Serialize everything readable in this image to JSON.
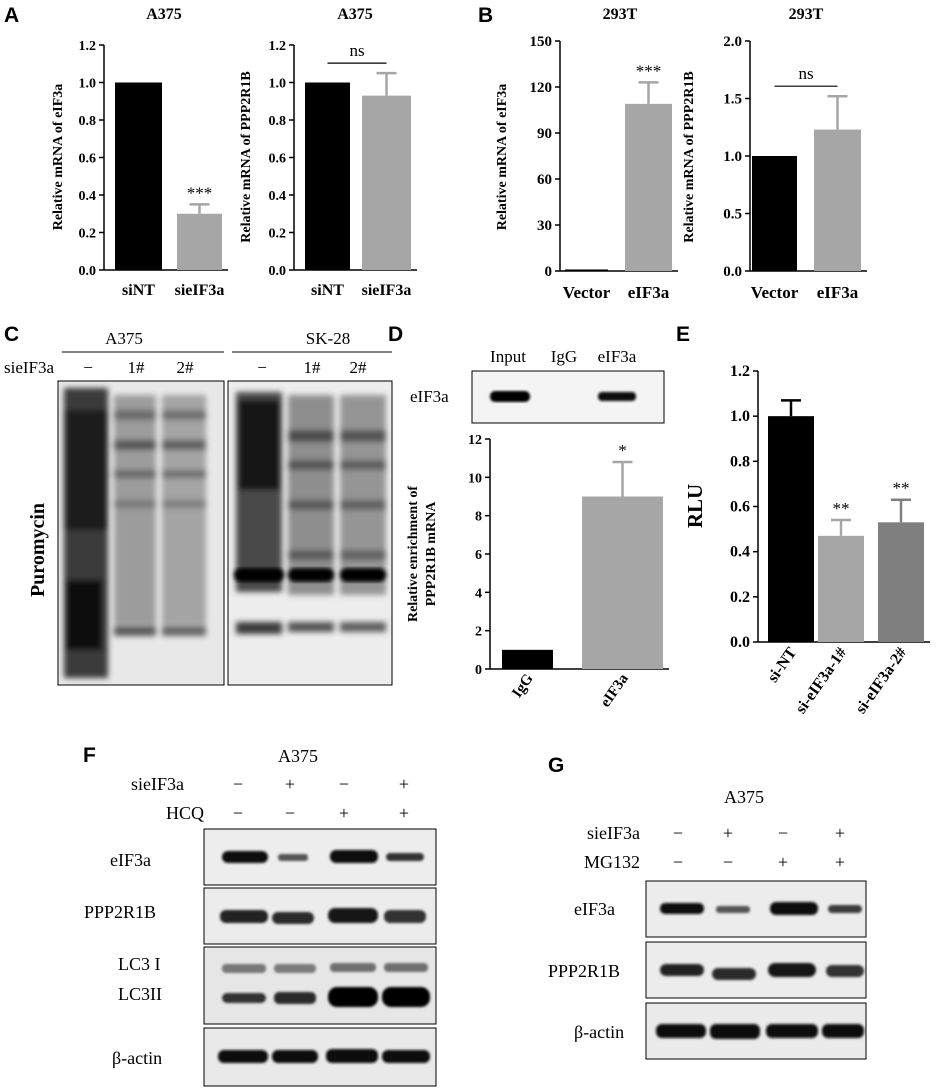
{
  "panels": {
    "A": "A",
    "B": "B",
    "C": "C",
    "D": "D",
    "E": "E",
    "F": "F",
    "G": "G"
  },
  "chart_data": [
    {
      "id": "A1",
      "type": "bar",
      "title": "A375",
      "ylabel": "Relative mRNA of eIF3a",
      "categories": [
        "siNT",
        "sieIF3a"
      ],
      "values": [
        1.0,
        0.3
      ],
      "errors": [
        0,
        0.05
      ],
      "colors": [
        "#000000",
        "#a6a6a6"
      ],
      "ylim": [
        0,
        1.2
      ],
      "yticks": [
        "0.0",
        "0.2",
        "0.4",
        "0.6",
        "0.8",
        "1.0",
        "1.2"
      ],
      "significance": [
        {
          "label": "***",
          "bar": 1
        }
      ]
    },
    {
      "id": "A2",
      "type": "bar",
      "title": "A375",
      "ylabel": "Relative mRNA of PPP2R1B",
      "categories": [
        "siNT",
        "sieIF3a"
      ],
      "values": [
        1.0,
        0.93
      ],
      "errors": [
        0,
        0.12
      ],
      "colors": [
        "#000000",
        "#a6a6a6"
      ],
      "ylim": [
        0,
        1.2
      ],
      "yticks": [
        "0.0",
        "0.2",
        "0.4",
        "0.6",
        "0.8",
        "1.0",
        "1.2"
      ],
      "significance": [
        {
          "label": "ns",
          "bracket": true
        }
      ]
    },
    {
      "id": "B1",
      "type": "bar",
      "title": "293T",
      "ylabel": "Relative mRNA of eIF3a",
      "categories": [
        "Vector",
        "eIF3a"
      ],
      "values": [
        1.0,
        109
      ],
      "errors": [
        0,
        14
      ],
      "colors": [
        "#000000",
        "#a6a6a6"
      ],
      "ylim": [
        0,
        150
      ],
      "yticks": [
        "0",
        "30",
        "60",
        "90",
        "120",
        "150"
      ],
      "significance": [
        {
          "label": "***",
          "bar": 1
        }
      ]
    },
    {
      "id": "B2",
      "type": "bar",
      "title": "293T",
      "ylabel": "Relative mRNA of PPP2R1B",
      "categories": [
        "Vector",
        "eIF3a"
      ],
      "values": [
        1.0,
        1.23
      ],
      "errors": [
        0,
        0.29
      ],
      "colors": [
        "#000000",
        "#a6a6a6"
      ],
      "ylim": [
        0,
        2.0
      ],
      "yticks": [
        "0.0",
        "0.5",
        "1.0",
        "1.5",
        "2.0"
      ],
      "significance": [
        {
          "label": "ns",
          "bracket": true
        }
      ]
    },
    {
      "id": "D",
      "type": "bar",
      "title": "",
      "ylabel": "Relative enrichment of PPP2R1B mRNA",
      "ylabel_lines": [
        "Relative enrichment of",
        "PPP2R1B mRNA"
      ],
      "categories": [
        "IgG",
        "eIF3a"
      ],
      "values": [
        1.0,
        9.0
      ],
      "errors": [
        0,
        1.8
      ],
      "colors": [
        "#000000",
        "#a6a6a6"
      ],
      "ylim": [
        0,
        12
      ],
      "yticks": [
        "0",
        "2",
        "4",
        "6",
        "8",
        "10",
        "12"
      ],
      "significance": [
        {
          "label": "*",
          "bar": 1
        }
      ]
    },
    {
      "id": "E",
      "type": "bar",
      "title": "",
      "ylabel": "RLU",
      "categories": [
        "si-NT",
        "si-eIF3a-1#",
        "si-eIF3a-2#"
      ],
      "values": [
        1.0,
        0.47,
        0.53
      ],
      "errors": [
        0.07,
        0.07,
        0.1
      ],
      "colors": [
        "#000000",
        "#a6a6a6",
        "#7f7f7f"
      ],
      "ylim": [
        0,
        1.2
      ],
      "yticks": [
        "0.0",
        "0.2",
        "0.4",
        "0.6",
        "0.8",
        "1.0",
        "1.2"
      ],
      "significance": [
        {
          "label": "**",
          "bar": 1
        },
        {
          "label": "**",
          "bar": 2
        }
      ]
    }
  ],
  "blotC": {
    "groups": [
      "A375",
      "SK-28"
    ],
    "row_label": "sieIF3a",
    "lanes": [
      "−",
      "1#",
      "2#",
      "−",
      "1#",
      "2#"
    ],
    "side_label": "Puromycin"
  },
  "blotD": {
    "lanes": [
      "Input",
      "IgG",
      "eIF3a"
    ],
    "row_label": "eIF3a"
  },
  "blotF": {
    "title": "A375",
    "conditions": [
      {
        "name": "sieIF3a",
        "signs": [
          "−",
          "+",
          "−",
          "+"
        ]
      },
      {
        "name": "HCQ",
        "signs": [
          "−",
          "−",
          "+",
          "+"
        ]
      }
    ],
    "rows": [
      "eIF3a",
      "PPP2R1B",
      "LC3 I",
      "LC3II",
      "β-actin"
    ]
  },
  "blotG": {
    "title": "A375",
    "conditions": [
      {
        "name": "sieIF3a",
        "signs": [
          "−",
          "+",
          "−",
          "+"
        ]
      },
      {
        "name": "MG132",
        "signs": [
          "−",
          "−",
          "+",
          "+"
        ]
      }
    ],
    "rows": [
      "eIF3a",
      "PPP2R1B",
      "β-actin"
    ]
  }
}
